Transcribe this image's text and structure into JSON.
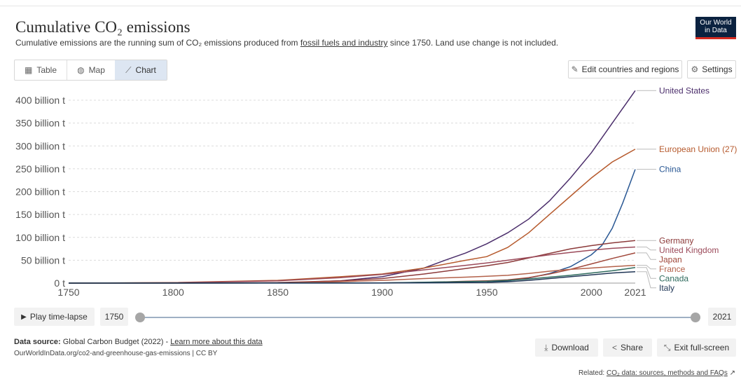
{
  "header": {
    "title": "Cumulative CO₂ emissions",
    "subtitle_pre": "Cumulative emissions are the running sum of CO₂ emissions produced from ",
    "subtitle_link": "fossil fuels and industry",
    "subtitle_post": " since 1750. Land use change is not included.",
    "logo_line1": "Our World",
    "logo_line2": "in Data"
  },
  "tabs": [
    {
      "label": "Table",
      "icon": "table-icon"
    },
    {
      "label": "Map",
      "icon": "globe-icon"
    },
    {
      "label": "Chart",
      "icon": "line-chart-icon",
      "active": true
    }
  ],
  "toolbar": {
    "edit_label": "Edit countries and regions",
    "settings_label": "Settings"
  },
  "timeline": {
    "play_label": "Play time-lapse",
    "start": "1750",
    "end": "2021"
  },
  "footer": {
    "source_label": "Data source:",
    "source_text": "Global Carbon Budget (2022) - ",
    "learn_more": "Learn more about this data",
    "url_text": "OurWorldInData.org/co2-and-greenhouse-gas-emissions | CC BY",
    "download_label": "Download",
    "share_label": "Share",
    "fullscreen_label": "Exit full-screen",
    "related_label": "Related: ",
    "related_link": "CO₂ data: sources, methods and FAQs"
  },
  "colors": {
    "accent_dark": "#0b2240",
    "accent_red": "#d42b21",
    "active_tab": "#dde6f2"
  },
  "chart_data": {
    "type": "line",
    "xlim": [
      1750,
      2021
    ],
    "ylim": [
      0,
      420
    ],
    "x_ticks": [
      1750,
      1800,
      1850,
      1900,
      1950,
      2000,
      2021
    ],
    "y_ticks": [
      {
        "value": 0,
        "label": "0 t"
      },
      {
        "value": 50,
        "label": "50 billion t"
      },
      {
        "value": 100,
        "label": "100 billion t"
      },
      {
        "value": 150,
        "label": "150 billion t"
      },
      {
        "value": 200,
        "label": "200 billion t"
      },
      {
        "value": 250,
        "label": "250 billion t"
      },
      {
        "value": 300,
        "label": "300 billion t"
      },
      {
        "value": 350,
        "label": "350 billion t"
      },
      {
        "value": 400,
        "label": "400 billion t"
      }
    ],
    "grid": true,
    "legend": "right",
    "series": [
      {
        "name": "United States",
        "color": "#4b2e6b",
        "x": [
          1750,
          1850,
          1880,
          1900,
          1920,
          1930,
          1940,
          1950,
          1960,
          1970,
          1980,
          1990,
          2000,
          2010,
          2021
        ],
        "y": [
          0,
          0.4,
          5,
          14,
          33,
          50,
          66,
          86,
          110,
          140,
          180,
          230,
          285,
          350,
          421
        ]
      },
      {
        "name": "European Union (27)",
        "color": "#b65a2d",
        "x": [
          1750,
          1800,
          1850,
          1880,
          1900,
          1920,
          1940,
          1950,
          1960,
          1970,
          1980,
          1990,
          2000,
          2010,
          2021
        ],
        "y": [
          0,
          1,
          6,
          14,
          20,
          33,
          50,
          58,
          78,
          110,
          150,
          190,
          230,
          265,
          293
        ]
      },
      {
        "name": "China",
        "color": "#2a5894",
        "x": [
          1750,
          1900,
          1950,
          1960,
          1970,
          1980,
          1990,
          2000,
          2005,
          2010,
          2015,
          2021
        ],
        "y": [
          0,
          0.1,
          1.5,
          5,
          11,
          21,
          36,
          62,
          82,
          120,
          175,
          249
        ]
      },
      {
        "name": "Germany",
        "color": "#8c3a3a",
        "x": [
          1750,
          1800,
          1850,
          1880,
          1900,
          1920,
          1940,
          1950,
          1960,
          1970,
          1980,
          1990,
          2000,
          2010,
          2021
        ],
        "y": [
          0,
          0.1,
          1,
          5,
          10,
          20,
          32,
          38,
          45,
          55,
          65,
          75,
          82,
          88,
          93
        ]
      },
      {
        "name": "United Kingdom",
        "color": "#9b4a5a",
        "x": [
          1750,
          1800,
          1850,
          1880,
          1900,
          1920,
          1940,
          1950,
          1960,
          1970,
          1980,
          1990,
          2000,
          2010,
          2021
        ],
        "y": [
          0,
          0.8,
          5,
          12,
          19,
          29,
          39,
          44,
          50,
          56,
          62,
          67,
          72,
          76,
          79
        ]
      },
      {
        "name": "Japan",
        "color": "#a0473a",
        "x": [
          1750,
          1900,
          1920,
          1940,
          1950,
          1960,
          1970,
          1980,
          1990,
          2000,
          2010,
          2021
        ],
        "y": [
          0,
          0.5,
          1.5,
          4,
          5,
          7,
          12,
          20,
          30,
          42,
          54,
          66
        ]
      },
      {
        "name": "France",
        "color": "#b3614a",
        "x": [
          1750,
          1850,
          1880,
          1900,
          1920,
          1940,
          1950,
          1960,
          1970,
          1980,
          1990,
          2000,
          2010,
          2021
        ],
        "y": [
          0,
          0.5,
          3,
          6,
          10,
          13,
          15,
          17,
          21,
          26,
          30,
          33,
          36,
          39
        ]
      },
      {
        "name": "Canada",
        "color": "#2f6b5e",
        "x": [
          1750,
          1900,
          1950,
          1960,
          1970,
          1980,
          1990,
          2000,
          2010,
          2021
        ],
        "y": [
          0,
          0.5,
          4,
          6,
          9,
          13,
          17,
          22,
          27,
          34
        ]
      },
      {
        "name": "Italy",
        "color": "#1f3555",
        "x": [
          1750,
          1900,
          1950,
          1960,
          1970,
          1980,
          1990,
          2000,
          2010,
          2021
        ],
        "y": [
          0,
          0.3,
          1.5,
          3,
          6,
          10,
          14,
          18,
          22,
          25
        ]
      }
    ]
  }
}
